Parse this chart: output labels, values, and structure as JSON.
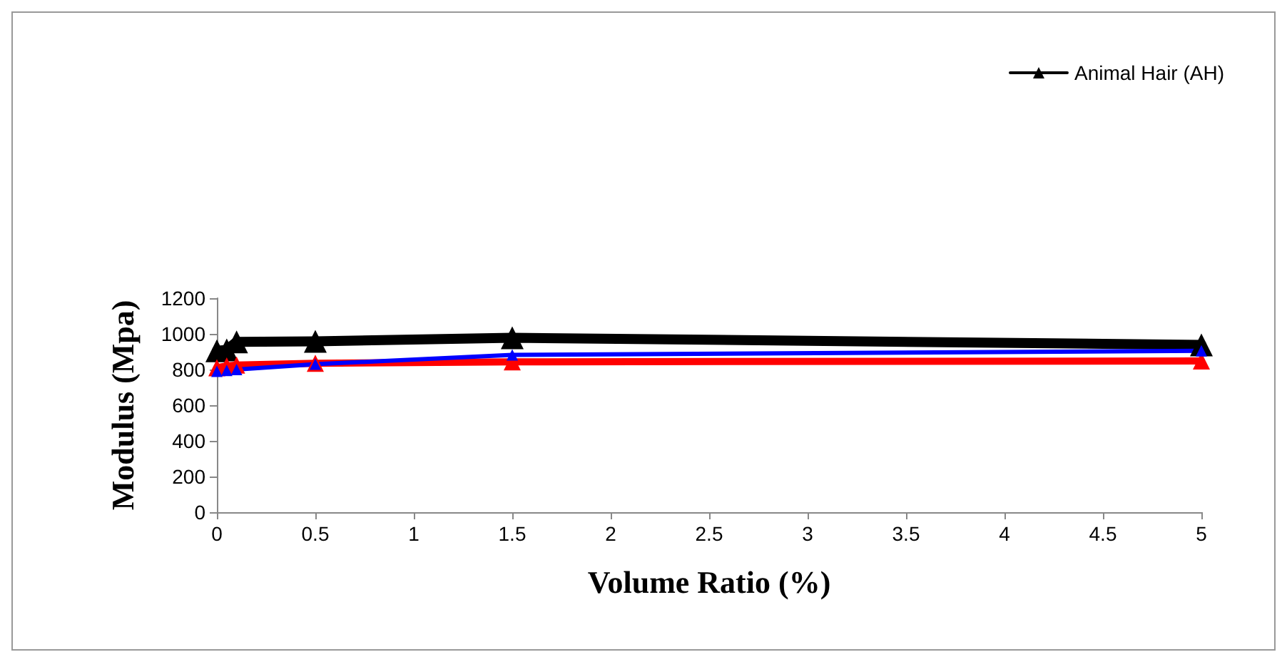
{
  "chart_data": {
    "type": "line",
    "xlabel": "Volume Ratio (%)",
    "ylabel": "Modulus (Mpa)",
    "x": [
      0,
      0.05,
      0.1,
      0.5,
      1.5,
      5
    ],
    "series": [
      {
        "name": "Animal Hair (AH)",
        "color": "#000000",
        "values": [
          905,
          910,
          955,
          958,
          978,
          938
        ]
      },
      {
        "color": "#ff0000",
        "values": [
          810,
          820,
          825,
          835,
          843,
          848
        ]
      },
      {
        "color": "#0000ff",
        "values": [
          790,
          795,
          800,
          830,
          882,
          905
        ]
      }
    ],
    "xlim": [
      0,
      5
    ],
    "xticks": [
      0,
      0.5,
      1,
      1.5,
      2,
      2.5,
      3,
      3.5,
      4,
      4.5,
      5
    ],
    "ylim": [
      0,
      1200
    ],
    "yticks": [
      0,
      200,
      400,
      600,
      800,
      1000,
      1200
    ],
    "grid": false,
    "legend": "top right",
    "marker": "triangle",
    "line_style": "solid"
  }
}
